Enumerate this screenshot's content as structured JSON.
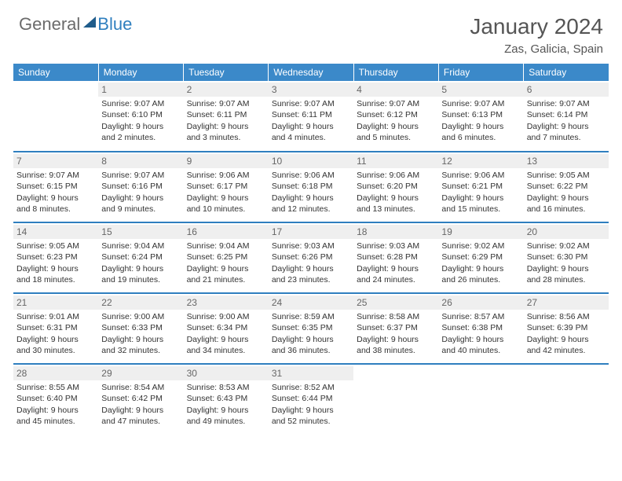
{
  "logo": {
    "text1": "General",
    "text2": "Blue"
  },
  "title": "January 2024",
  "location": "Zas, Galicia, Spain",
  "colors": {
    "header_bg": "#3b89c9",
    "header_text": "#ffffff",
    "daynum_bg": "#efefef",
    "daynum_text": "#666666",
    "row_border": "#2f7fbf",
    "body_text": "#333333",
    "title_text": "#555555"
  },
  "weekdays": [
    "Sunday",
    "Monday",
    "Tuesday",
    "Wednesday",
    "Thursday",
    "Friday",
    "Saturday"
  ],
  "weeks": [
    [
      null,
      {
        "n": "1",
        "sr": "9:07 AM",
        "ss": "6:10 PM",
        "dl": "9 hours and 2 minutes."
      },
      {
        "n": "2",
        "sr": "9:07 AM",
        "ss": "6:11 PM",
        "dl": "9 hours and 3 minutes."
      },
      {
        "n": "3",
        "sr": "9:07 AM",
        "ss": "6:11 PM",
        "dl": "9 hours and 4 minutes."
      },
      {
        "n": "4",
        "sr": "9:07 AM",
        "ss": "6:12 PM",
        "dl": "9 hours and 5 minutes."
      },
      {
        "n": "5",
        "sr": "9:07 AM",
        "ss": "6:13 PM",
        "dl": "9 hours and 6 minutes."
      },
      {
        "n": "6",
        "sr": "9:07 AM",
        "ss": "6:14 PM",
        "dl": "9 hours and 7 minutes."
      }
    ],
    [
      {
        "n": "7",
        "sr": "9:07 AM",
        "ss": "6:15 PM",
        "dl": "9 hours and 8 minutes."
      },
      {
        "n": "8",
        "sr": "9:07 AM",
        "ss": "6:16 PM",
        "dl": "9 hours and 9 minutes."
      },
      {
        "n": "9",
        "sr": "9:06 AM",
        "ss": "6:17 PM",
        "dl": "9 hours and 10 minutes."
      },
      {
        "n": "10",
        "sr": "9:06 AM",
        "ss": "6:18 PM",
        "dl": "9 hours and 12 minutes."
      },
      {
        "n": "11",
        "sr": "9:06 AM",
        "ss": "6:20 PM",
        "dl": "9 hours and 13 minutes."
      },
      {
        "n": "12",
        "sr": "9:06 AM",
        "ss": "6:21 PM",
        "dl": "9 hours and 15 minutes."
      },
      {
        "n": "13",
        "sr": "9:05 AM",
        "ss": "6:22 PM",
        "dl": "9 hours and 16 minutes."
      }
    ],
    [
      {
        "n": "14",
        "sr": "9:05 AM",
        "ss": "6:23 PM",
        "dl": "9 hours and 18 minutes."
      },
      {
        "n": "15",
        "sr": "9:04 AM",
        "ss": "6:24 PM",
        "dl": "9 hours and 19 minutes."
      },
      {
        "n": "16",
        "sr": "9:04 AM",
        "ss": "6:25 PM",
        "dl": "9 hours and 21 minutes."
      },
      {
        "n": "17",
        "sr": "9:03 AM",
        "ss": "6:26 PM",
        "dl": "9 hours and 23 minutes."
      },
      {
        "n": "18",
        "sr": "9:03 AM",
        "ss": "6:28 PM",
        "dl": "9 hours and 24 minutes."
      },
      {
        "n": "19",
        "sr": "9:02 AM",
        "ss": "6:29 PM",
        "dl": "9 hours and 26 minutes."
      },
      {
        "n": "20",
        "sr": "9:02 AM",
        "ss": "6:30 PM",
        "dl": "9 hours and 28 minutes."
      }
    ],
    [
      {
        "n": "21",
        "sr": "9:01 AM",
        "ss": "6:31 PM",
        "dl": "9 hours and 30 minutes."
      },
      {
        "n": "22",
        "sr": "9:00 AM",
        "ss": "6:33 PM",
        "dl": "9 hours and 32 minutes."
      },
      {
        "n": "23",
        "sr": "9:00 AM",
        "ss": "6:34 PM",
        "dl": "9 hours and 34 minutes."
      },
      {
        "n": "24",
        "sr": "8:59 AM",
        "ss": "6:35 PM",
        "dl": "9 hours and 36 minutes."
      },
      {
        "n": "25",
        "sr": "8:58 AM",
        "ss": "6:37 PM",
        "dl": "9 hours and 38 minutes."
      },
      {
        "n": "26",
        "sr": "8:57 AM",
        "ss": "6:38 PM",
        "dl": "9 hours and 40 minutes."
      },
      {
        "n": "27",
        "sr": "8:56 AM",
        "ss": "6:39 PM",
        "dl": "9 hours and 42 minutes."
      }
    ],
    [
      {
        "n": "28",
        "sr": "8:55 AM",
        "ss": "6:40 PM",
        "dl": "9 hours and 45 minutes."
      },
      {
        "n": "29",
        "sr": "8:54 AM",
        "ss": "6:42 PM",
        "dl": "9 hours and 47 minutes."
      },
      {
        "n": "30",
        "sr": "8:53 AM",
        "ss": "6:43 PM",
        "dl": "9 hours and 49 minutes."
      },
      {
        "n": "31",
        "sr": "8:52 AM",
        "ss": "6:44 PM",
        "dl": "9 hours and 52 minutes."
      },
      null,
      null,
      null
    ]
  ],
  "labels": {
    "sunrise": "Sunrise:",
    "sunset": "Sunset:",
    "daylight": "Daylight:"
  }
}
